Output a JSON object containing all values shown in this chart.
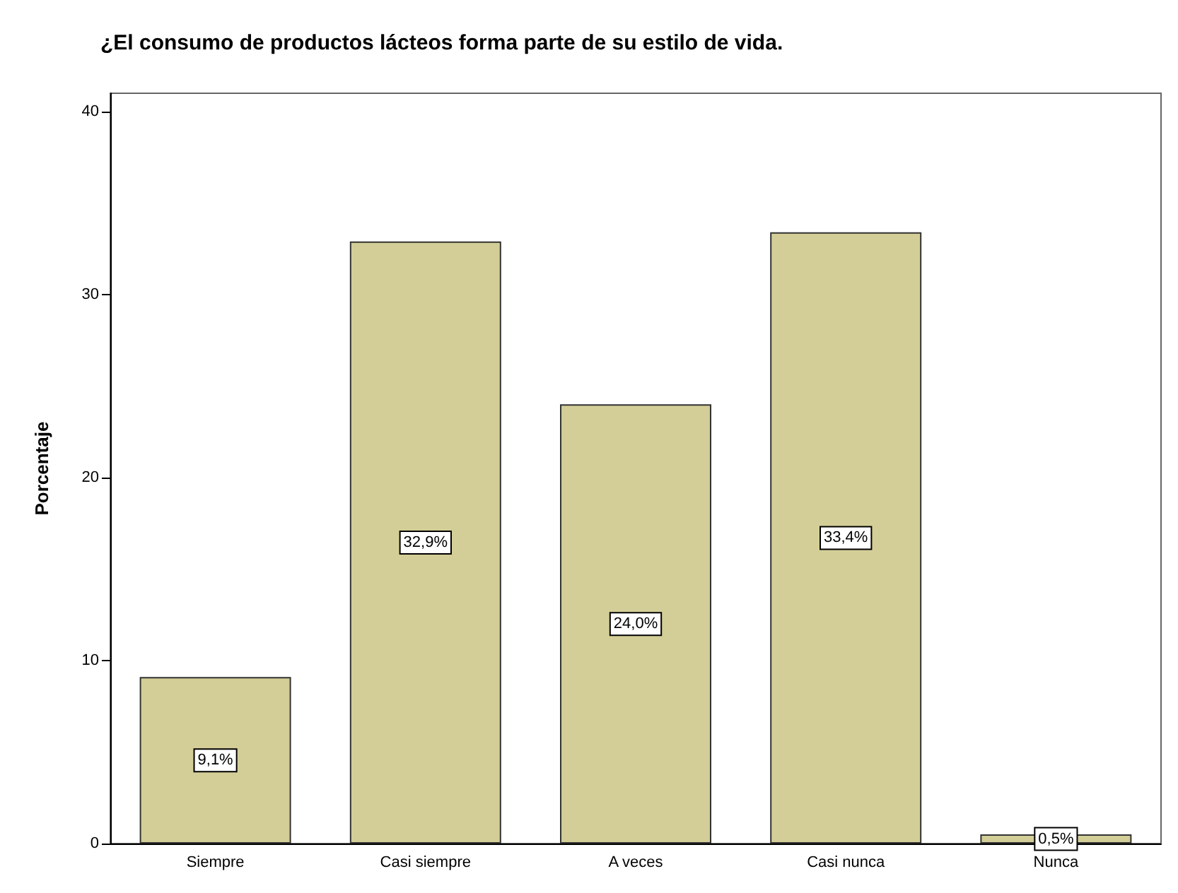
{
  "chart_data": {
    "type": "bar",
    "title": "¿El consumo de productos lácteos forma parte de su estilo de vida.",
    "ylabel": "Porcentaje",
    "categories": [
      "Siempre",
      "Casi siempre",
      "A veces",
      "Casi nunca",
      "Nunca"
    ],
    "values": [
      9.1,
      32.9,
      24.0,
      33.4,
      0.5
    ],
    "value_labels": [
      "9,1%",
      "32,9%",
      "24,0%",
      "33,4%",
      "0,5%"
    ],
    "color": "#d3ce97",
    "ylim": [
      0,
      41
    ],
    "yticks": [
      0,
      10,
      20,
      30,
      40
    ],
    "grid": false
  }
}
